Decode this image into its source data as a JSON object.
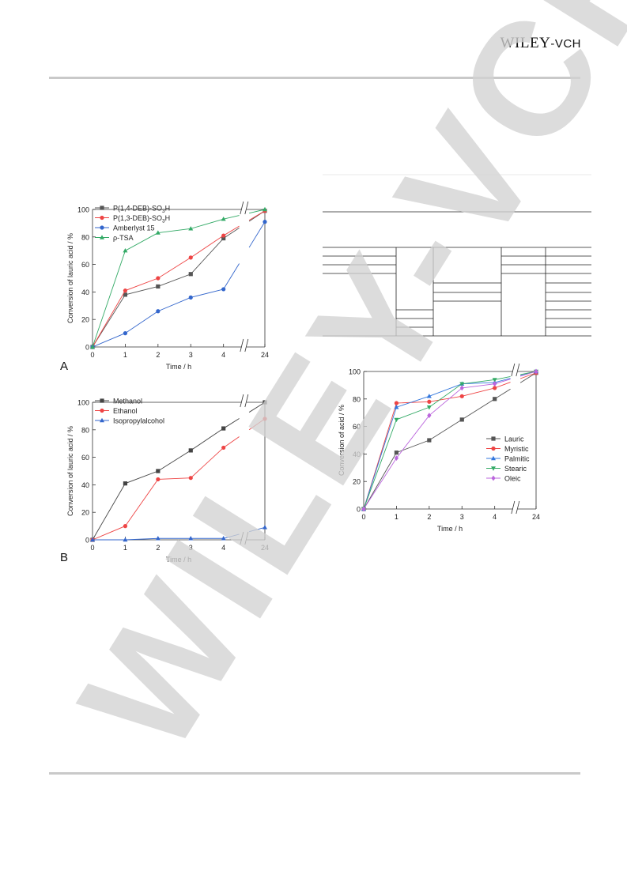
{
  "header": {
    "publisher_main": "WILEY",
    "publisher_suffix": "-VCH"
  },
  "watermark": {
    "text": "WILEY-VCH",
    "color": "#d2d2d2"
  },
  "panels": {
    "a": "A",
    "b": "B"
  },
  "chart_data": [
    {
      "id": "A",
      "type": "line",
      "ylabel": "Conversion of lauric acid / %",
      "xlabel": "Time / h",
      "x": [
        "0",
        "1",
        "2",
        "3",
        "4",
        "24"
      ],
      "ylim": [
        0,
        100
      ],
      "yticks": [
        "0",
        "20",
        "40",
        "60",
        "80",
        "100"
      ],
      "axis_break": "between 4 and 24",
      "legend_position": "top-left",
      "series": [
        {
          "name": "P(1,4-DEB)-SO3H",
          "name_parts": [
            "P(1,4-DEB)-SO",
            "3",
            "H"
          ],
          "color": "#555555",
          "marker": "square",
          "values": [
            0,
            38,
            44,
            53,
            79,
            99
          ]
        },
        {
          "name": "P(1,3-DEB)-SO3H",
          "name_parts": [
            "P(1,3-DEB)-SO",
            "3",
            "H"
          ],
          "color": "#ee4444",
          "marker": "circle",
          "values": [
            0,
            41,
            50,
            65,
            81,
            99
          ]
        },
        {
          "name": "Amberlyst 15",
          "name_parts": [
            "Amberlyst 15",
            "",
            ""
          ],
          "color": "#3366cc",
          "marker": "circle",
          "values": [
            0,
            10,
            26,
            36,
            42,
            91
          ]
        },
        {
          "name": "ρ-TSA",
          "name_parts": [
            "ρ-TSA",
            "",
            ""
          ],
          "color": "#33aa66",
          "marker": "triangle",
          "values": [
            0,
            70,
            83,
            86,
            93,
            100
          ]
        }
      ]
    },
    {
      "id": "B",
      "type": "line",
      "ylabel": "Conversion of lauric acid / %",
      "xlabel": "Time / h",
      "x": [
        "0",
        "1",
        "2",
        "3",
        "4",
        "24"
      ],
      "ylim": [
        0,
        100
      ],
      "yticks": [
        "0",
        "20",
        "40",
        "60",
        "80",
        "100"
      ],
      "axis_break": "between 4 and 24",
      "legend_position": "top-left",
      "series": [
        {
          "name": "Methanol",
          "name_parts": [
            "Methanol",
            "",
            ""
          ],
          "color": "#444444",
          "marker": "square",
          "values": [
            0,
            41,
            50,
            65,
            81,
            100
          ]
        },
        {
          "name": "Ethanol",
          "name_parts": [
            "Ethanol",
            "",
            ""
          ],
          "color": "#ee4444",
          "marker": "circle",
          "values": [
            0,
            10,
            44,
            45,
            67,
            88
          ]
        },
        {
          "name": "Isopropylalcohol",
          "name_parts": [
            "Isopropylalcohol",
            "",
            ""
          ],
          "color": "#3366cc",
          "marker": "triangle",
          "values": [
            0,
            0,
            1,
            1,
            1,
            9
          ]
        }
      ]
    },
    {
      "id": "C",
      "type": "line",
      "ylabel": "Conversion of acid / %",
      "xlabel": "Time / h",
      "x": [
        "0",
        "1",
        "2",
        "3",
        "4",
        "24"
      ],
      "ylim": [
        0,
        100
      ],
      "yticks": [
        "0",
        "20",
        "40",
        "60",
        "80",
        "100"
      ],
      "axis_break": "between 4 and 24",
      "legend_position": "bottom-right",
      "series": [
        {
          "name": "Lauric",
          "name_parts": [
            "Lauric",
            "",
            ""
          ],
          "color": "#555555",
          "marker": "square",
          "values": [
            0,
            41,
            50,
            65,
            80,
            99
          ]
        },
        {
          "name": "Myristic",
          "name_parts": [
            "Myristic",
            "",
            ""
          ],
          "color": "#ee4444",
          "marker": "circle",
          "values": [
            0,
            77,
            78,
            82,
            88,
            99
          ]
        },
        {
          "name": "Palmitic",
          "name_parts": [
            "Palmitic",
            "",
            ""
          ],
          "color": "#3377dd",
          "marker": "triangle",
          "values": [
            0,
            74,
            82,
            91,
            92,
            100
          ]
        },
        {
          "name": "Stearic",
          "name_parts": [
            "Stearic",
            "",
            ""
          ],
          "color": "#33aa66",
          "marker": "triangle-down",
          "values": [
            0,
            65,
            74,
            91,
            94,
            100
          ]
        },
        {
          "name": "Oleic",
          "name_parts": [
            "Oleic",
            "",
            ""
          ],
          "color": "#bb66dd",
          "marker": "diamond",
          "values": [
            0,
            37,
            68,
            88,
            91,
            100
          ]
        }
      ]
    }
  ]
}
